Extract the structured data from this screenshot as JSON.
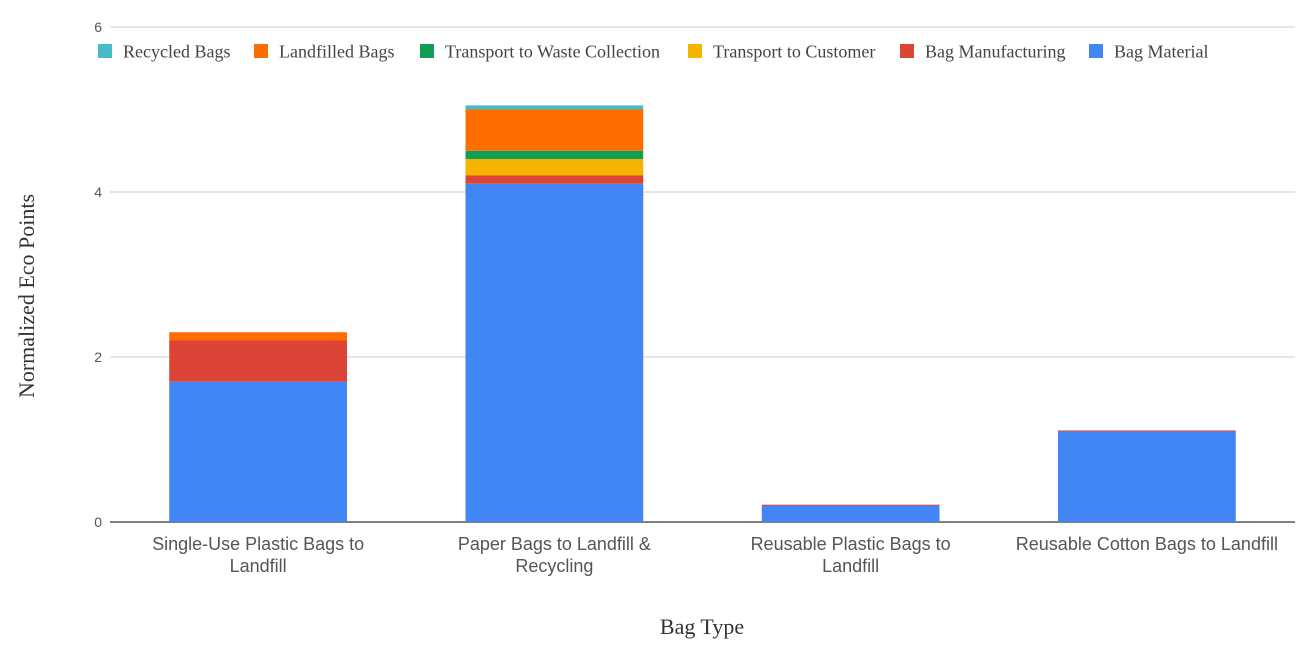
{
  "chart_data": {
    "type": "bar",
    "stacked": true,
    "title": "",
    "xlabel": "Bag Type",
    "ylabel": "Normalized Eco Points",
    "ylim": [
      0,
      6
    ],
    "yticks": [
      0,
      2,
      4,
      6
    ],
    "grid": true,
    "legend_position": "top",
    "categories": [
      [
        "Single-Use Plastic Bags to",
        "Landfill"
      ],
      [
        "Paper Bags to Landfill &",
        "Recycling"
      ],
      [
        "Reusable Plastic Bags to",
        "Landfill"
      ],
      [
        "Reusable Cotton Bags to Landfill"
      ]
    ],
    "series": [
      {
        "name": "Bag Material",
        "color": "#4285F4",
        "values": [
          1.7,
          4.1,
          0.2,
          1.1
        ]
      },
      {
        "name": "Bag Manufacturing",
        "color": "#DB4437",
        "values": [
          0.5,
          0.1,
          0.01,
          0.01
        ]
      },
      {
        "name": "Transport to Customer",
        "color": "#F4B400",
        "values": [
          0,
          0.2,
          0,
          0
        ]
      },
      {
        "name": "Transport to Waste Collection",
        "color": "#0F9D58",
        "values": [
          0,
          0.1,
          0,
          0
        ]
      },
      {
        "name": "Landfilled Bags",
        "color": "#FF6D00",
        "values": [
          0.1,
          0.5,
          0,
          0
        ]
      },
      {
        "name": "Recycled Bags",
        "color": "#46BDC6",
        "values": [
          0,
          0.05,
          0,
          0
        ]
      }
    ],
    "legend_order": [
      "Recycled Bags",
      "Landfilled Bags",
      "Transport to Waste Collection",
      "Transport to Customer",
      "Bag Manufacturing",
      "Bag Material"
    ]
  }
}
